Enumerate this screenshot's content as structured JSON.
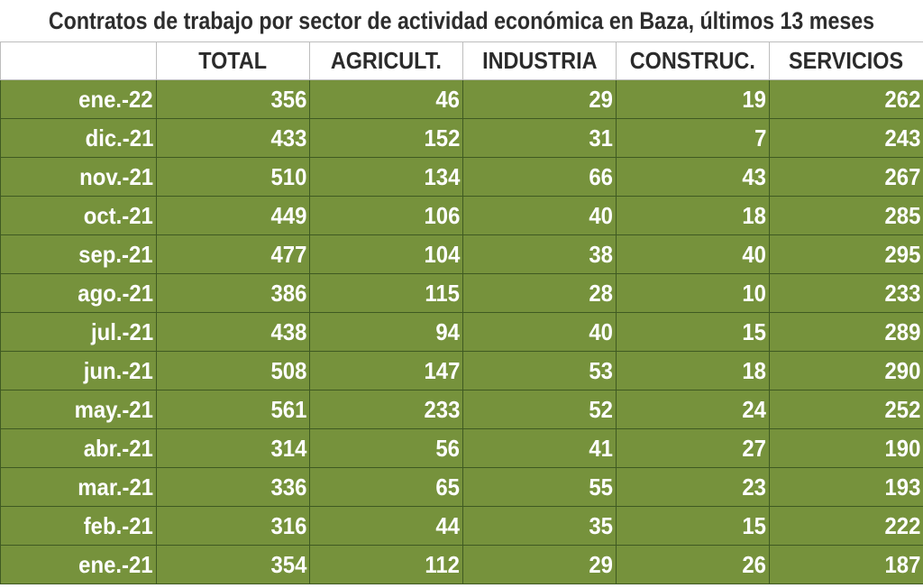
{
  "title": "Contratos de trabajo por sector de actividad económica en Baza, últimos 13 meses",
  "chart_data": {
    "type": "table",
    "title": "Contratos de trabajo por sector de actividad económica en Baza, últimos 13 meses",
    "columns": [
      "",
      "TOTAL",
      "AGRICULT.",
      "INDUSTRIA",
      "CONSTRUC.",
      "SERVICIOS"
    ],
    "rows": [
      [
        "ene.-22",
        "356",
        "46",
        "29",
        "19",
        "262"
      ],
      [
        "dic.-21",
        "433",
        "152",
        "31",
        "7",
        "243"
      ],
      [
        "nov.-21",
        "510",
        "134",
        "66",
        "43",
        "267"
      ],
      [
        "oct.-21",
        "449",
        "106",
        "40",
        "18",
        "285"
      ],
      [
        "sep.-21",
        "477",
        "104",
        "38",
        "40",
        "295"
      ],
      [
        "ago.-21",
        "386",
        "115",
        "28",
        "10",
        "233"
      ],
      [
        "jul.-21",
        "438",
        "94",
        "40",
        "15",
        "289"
      ],
      [
        "jun.-21",
        "508",
        "147",
        "53",
        "18",
        "290"
      ],
      [
        "may.-21",
        "561",
        "233",
        "52",
        "24",
        "252"
      ],
      [
        "abr.-21",
        "314",
        "56",
        "41",
        "27",
        "190"
      ],
      [
        "mar.-21",
        "336",
        "65",
        "55",
        "23",
        "193"
      ],
      [
        "feb.-21",
        "316",
        "44",
        "35",
        "15",
        "222"
      ],
      [
        "ene.-21",
        "354",
        "112",
        "29",
        "26",
        "187"
      ]
    ]
  },
  "colors": {
    "cell_fill": "#76923c",
    "cell_text": "#ffffff",
    "header_text": "#2b2b2b",
    "grid": "#3f5a22"
  }
}
